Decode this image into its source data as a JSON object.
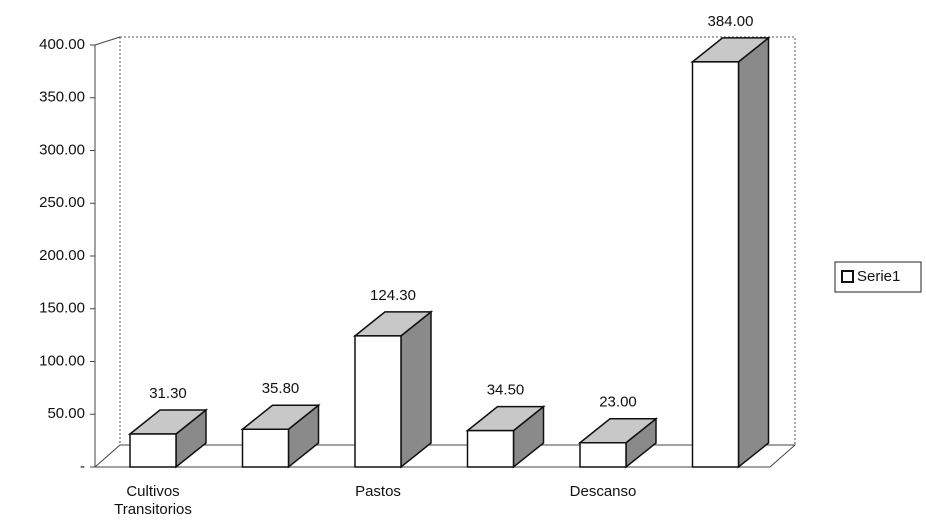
{
  "chart_data": {
    "type": "bar3d",
    "categories": [
      "Cultivos Transitorios",
      null,
      "Pastos",
      null,
      "Descanso",
      null
    ],
    "series": [
      {
        "name": "Serie1",
        "color": "#ffffff",
        "values": [
          31.3,
          35.8,
          124.3,
          34.5,
          23.0,
          384.0
        ],
        "value_labels": [
          "31.30",
          "35.80",
          "124.30",
          "34.50",
          "23.00",
          "384.00"
        ]
      }
    ],
    "ylim": [
      0,
      400
    ],
    "yticks": [
      {
        "value": 0,
        "label": "-"
      },
      {
        "value": 50,
        "label": "50.00"
      },
      {
        "value": 100,
        "label": "100.00"
      },
      {
        "value": 150,
        "label": "150.00"
      },
      {
        "value": 200,
        "label": "200.00"
      },
      {
        "value": 250,
        "label": "250.00"
      },
      {
        "value": 300,
        "label": "300.00"
      },
      {
        "value": 350,
        "label": "350.00"
      },
      {
        "value": 400,
        "label": "400.00"
      }
    ],
    "legend": "right"
  }
}
